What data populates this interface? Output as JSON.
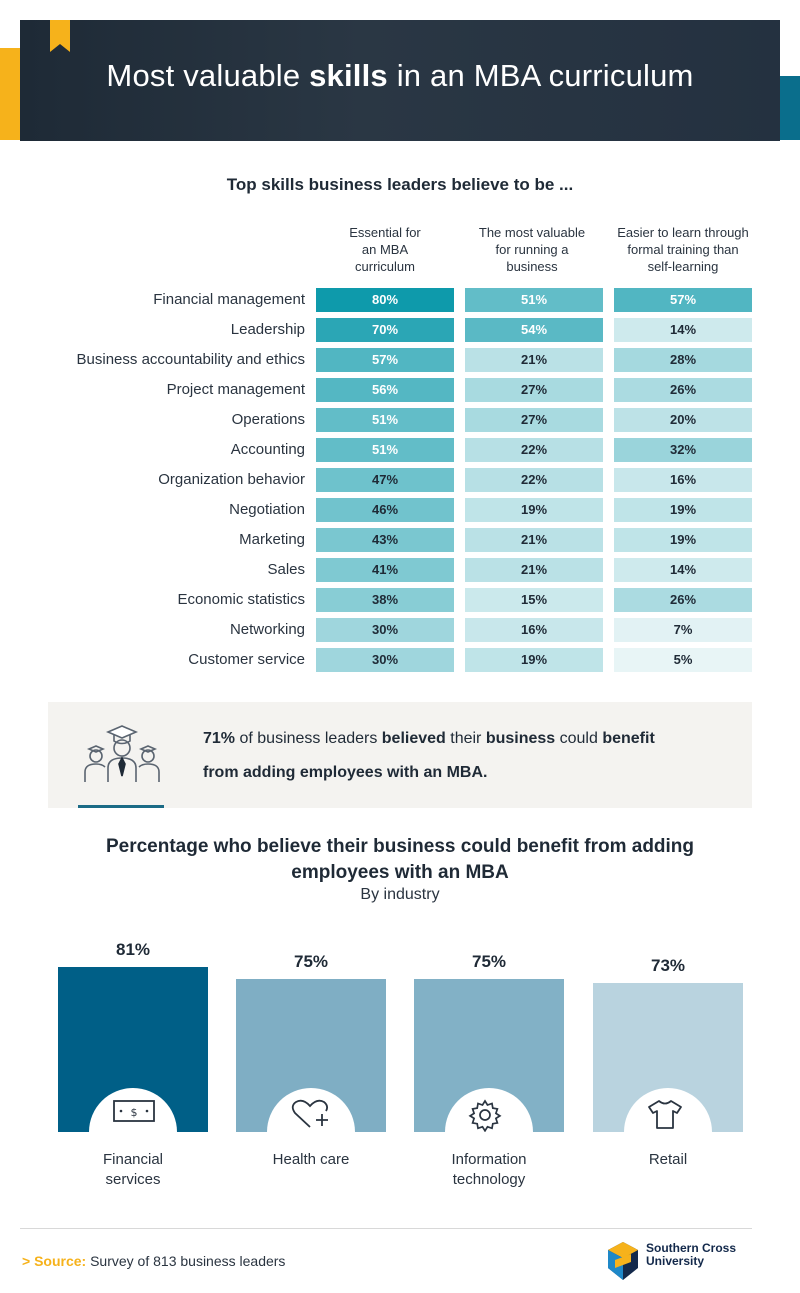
{
  "header": {
    "title_pre": "Most valuable ",
    "title_bold": "skills",
    "title_post": " in an MBA curriculum"
  },
  "table": {
    "subtitle": "Top skills business leaders believe to be ...",
    "columns": [
      {
        "line1": "Essential for",
        "line2": "an MBA",
        "line3": "curriculum"
      },
      {
        "line1": "The most valuable",
        "line2": "for running a",
        "line3": "business"
      },
      {
        "line1": "Easier to learn through",
        "line2": "formal training than",
        "line3": "self-learning"
      }
    ]
  },
  "callout": {
    "pct": "71%",
    "t1": " of business leaders ",
    "b1": "believed",
    "t2": " their ",
    "b2": "business",
    "t3": " could ",
    "b3": "benefit",
    "b4": "from adding employees with an MBA."
  },
  "industry": {
    "title": "Percentage who believe their business could benefit from adding employees with an MBA",
    "subtitle": "By industry"
  },
  "chart_data": [
    {
      "type": "table",
      "title": "Top skills business leaders believe to be ...",
      "columns": [
        "Essential for an MBA curriculum",
        "The most valuable for running a business",
        "Easier to learn through formal training than self-learning"
      ],
      "rows": [
        {
          "label": "Financial management",
          "values": [
            "80%",
            "51%",
            "57%"
          ]
        },
        {
          "label": "Leadership",
          "values": [
            "70%",
            "54%",
            "14%"
          ]
        },
        {
          "label": "Business accountability and ethics",
          "values": [
            "57%",
            "21%",
            "28%"
          ]
        },
        {
          "label": "Project management",
          "values": [
            "56%",
            "27%",
            "26%"
          ]
        },
        {
          "label": "Operations",
          "values": [
            "51%",
            "27%",
            "20%"
          ]
        },
        {
          "label": "Accounting",
          "values": [
            "51%",
            "22%",
            "32%"
          ]
        },
        {
          "label": "Organization behavior",
          "values": [
            "47%",
            "22%",
            "16%"
          ]
        },
        {
          "label": "Negotiation",
          "values": [
            "46%",
            "19%",
            "19%"
          ]
        },
        {
          "label": "Marketing",
          "values": [
            "43%",
            "21%",
            "19%"
          ]
        },
        {
          "label": "Sales",
          "values": [
            "41%",
            "21%",
            "14%"
          ]
        },
        {
          "label": "Economic statistics",
          "values": [
            "38%",
            "15%",
            "26%"
          ]
        },
        {
          "label": "Networking",
          "values": [
            "30%",
            "16%",
            "7%"
          ]
        },
        {
          "label": "Customer service",
          "values": [
            "30%",
            "19%",
            "5%"
          ]
        }
      ]
    },
    {
      "type": "bar",
      "title": "Percentage who believe their business could benefit from adding employees with an MBA",
      "subtitle": "By industry",
      "categories": [
        "Financial services",
        "Health care",
        "Information technology",
        "Retail"
      ],
      "label_lines": [
        [
          "Financial",
          "services"
        ],
        [
          "Health care"
        ],
        [
          "Information",
          "technology"
        ],
        [
          "Retail"
        ]
      ],
      "values": [
        81,
        75,
        75,
        73
      ],
      "value_labels": [
        "81%",
        "75%",
        "75%",
        "73%"
      ],
      "colors": [
        "#005f87",
        "#7faec4",
        "#82b1c6",
        "#b9d3df"
      ],
      "icons": [
        "cash-icon",
        "heart-plus-icon",
        "gear-icon",
        "shirt-icon"
      ]
    }
  ],
  "footer": {
    "source_key": "Source:",
    "source_text": " Survey of 813 business leaders",
    "logo_line1": "Southern Cross",
    "logo_line2": "University"
  }
}
